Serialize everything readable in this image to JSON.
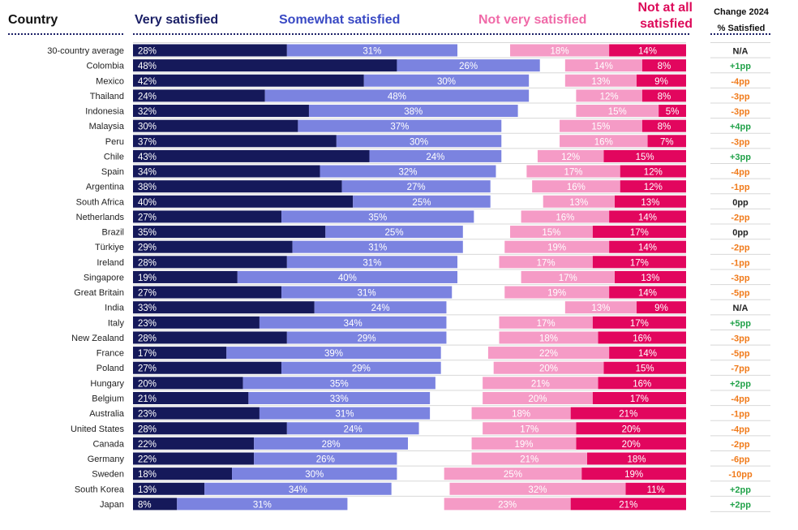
{
  "colors": {
    "very": "#15195a",
    "somewhat": "#7b83e0",
    "notvery": "#f59bc6",
    "notatall": "#e2065e",
    "very_label": "#1a1f66",
    "somewhat_label": "#3949c4",
    "notvery_label": "#f06aa8",
    "notatall_label": "#dd0a5a",
    "change_pos": "#22a24a",
    "change_neg": "#f07a1a",
    "change_neutral": "#222222"
  },
  "chart_data": {
    "type": "diverging-stacked-bar",
    "column_headers": {
      "country": "Country",
      "very": "Very satisfied",
      "somewhat": "Somewhat satisfied",
      "notvery": "Not very satisfied",
      "notatall_line1": "Not at all",
      "notatall_line2": "satisfied",
      "change_line1": "Change 2024",
      "change_line2": "% Satisfied"
    },
    "series": [
      "Very satisfied",
      "Somewhat satisfied",
      "Not very satisfied",
      "Not at all satisfied"
    ],
    "rows": [
      {
        "country": "30-country average",
        "very": 28,
        "somewhat": 31,
        "notvery": 18,
        "notatall": 14,
        "change": "N/A"
      },
      {
        "country": "Colombia",
        "very": 48,
        "somewhat": 26,
        "notvery": 14,
        "notatall": 8,
        "change": "+1pp"
      },
      {
        "country": "Mexico",
        "very": 42,
        "somewhat": 30,
        "notvery": 13,
        "notatall": 9,
        "change": "-4pp"
      },
      {
        "country": "Thailand",
        "very": 24,
        "somewhat": 48,
        "notvery": 12,
        "notatall": 8,
        "change": "-3pp"
      },
      {
        "country": "Indonesia",
        "very": 32,
        "somewhat": 38,
        "notvery": 15,
        "notatall": 5,
        "change": "-3pp"
      },
      {
        "country": "Malaysia",
        "very": 30,
        "somewhat": 37,
        "notvery": 15,
        "notatall": 8,
        "change": "+4pp"
      },
      {
        "country": "Peru",
        "very": 37,
        "somewhat": 30,
        "notvery": 16,
        "notatall": 7,
        "change": "-3pp"
      },
      {
        "country": "Chile",
        "very": 43,
        "somewhat": 24,
        "notvery": 12,
        "notatall": 15,
        "change": "+3pp"
      },
      {
        "country": "Spain",
        "very": 34,
        "somewhat": 32,
        "notvery": 17,
        "notatall": 12,
        "change": "-4pp"
      },
      {
        "country": "Argentina",
        "very": 38,
        "somewhat": 27,
        "notvery": 16,
        "notatall": 12,
        "change": "-1pp"
      },
      {
        "country": "South Africa",
        "very": 40,
        "somewhat": 25,
        "notvery": 13,
        "notatall": 13,
        "change": "0pp"
      },
      {
        "country": "Netherlands",
        "very": 27,
        "somewhat": 35,
        "notvery": 16,
        "notatall": 14,
        "change": "-2pp"
      },
      {
        "country": "Brazil",
        "very": 35,
        "somewhat": 25,
        "notvery": 15,
        "notatall": 17,
        "change": "0pp"
      },
      {
        "country": "Türkiye",
        "very": 29,
        "somewhat": 31,
        "notvery": 19,
        "notatall": 14,
        "change": "-2pp"
      },
      {
        "country": "Ireland",
        "very": 28,
        "somewhat": 31,
        "notvery": 17,
        "notatall": 17,
        "change": "-1pp"
      },
      {
        "country": "Singapore",
        "very": 19,
        "somewhat": 40,
        "notvery": 17,
        "notatall": 13,
        "change": "-3pp"
      },
      {
        "country": "Great Britain",
        "very": 27,
        "somewhat": 31,
        "notvery": 19,
        "notatall": 14,
        "change": "-5pp"
      },
      {
        "country": "India",
        "very": 33,
        "somewhat": 24,
        "notvery": 13,
        "notatall": 9,
        "change": "N/A"
      },
      {
        "country": "Italy",
        "very": 23,
        "somewhat": 34,
        "notvery": 17,
        "notatall": 17,
        "change": "+5pp"
      },
      {
        "country": "New Zealand",
        "very": 28,
        "somewhat": 29,
        "notvery": 18,
        "notatall": 16,
        "change": "-3pp"
      },
      {
        "country": "France",
        "very": 17,
        "somewhat": 39,
        "notvery": 22,
        "notatall": 14,
        "change": "-5pp"
      },
      {
        "country": "Poland",
        "very": 27,
        "somewhat": 29,
        "notvery": 20,
        "notatall": 15,
        "change": "-7pp"
      },
      {
        "country": "Hungary",
        "very": 20,
        "somewhat": 35,
        "notvery": 21,
        "notatall": 16,
        "change": "+2pp"
      },
      {
        "country": "Belgium",
        "very": 21,
        "somewhat": 33,
        "notvery": 20,
        "notatall": 17,
        "change": "-4pp"
      },
      {
        "country": "Australia",
        "very": 23,
        "somewhat": 31,
        "notvery": 18,
        "notatall": 21,
        "change": "-1pp"
      },
      {
        "country": "United States",
        "very": 28,
        "somewhat": 24,
        "notvery": 17,
        "notatall": 20,
        "change": "-4pp"
      },
      {
        "country": "Canada",
        "very": 22,
        "somewhat": 28,
        "notvery": 19,
        "notatall": 20,
        "change": "-2pp"
      },
      {
        "country": "Germany",
        "very": 22,
        "somewhat": 26,
        "notvery": 21,
        "notatall": 18,
        "change": "-6pp"
      },
      {
        "country": "Sweden",
        "very": 18,
        "somewhat": 30,
        "notvery": 25,
        "notatall": 19,
        "change": "-10pp"
      },
      {
        "country": "South Korea",
        "very": 13,
        "somewhat": 34,
        "notvery": 32,
        "notatall": 11,
        "change": "+2pp"
      },
      {
        "country": "Japan",
        "very": 8,
        "somewhat": 31,
        "notvery": 23,
        "notatall": 21,
        "change": "+2pp"
      }
    ]
  }
}
